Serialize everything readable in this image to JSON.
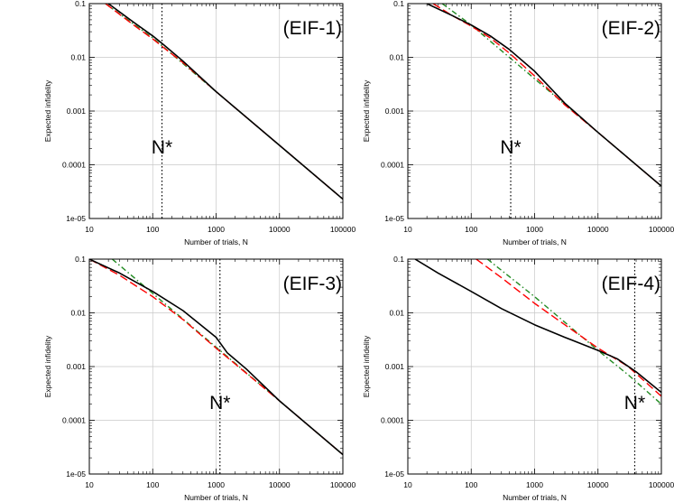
{
  "chart_data": [
    {
      "type": "line",
      "panel_label": "(EIF-1)",
      "marker_label": "N*",
      "marker_x": 140,
      "xlabel": "Number of trials, N",
      "ylabel": "Expected infidelity",
      "xscale": "log",
      "yscale": "log",
      "xlim": [
        10,
        100000
      ],
      "ylim": [
        1e-05,
        0.1
      ],
      "xticks": [
        "10",
        "100",
        "1000",
        "10000",
        "100000"
      ],
      "yticks": [
        "1e-05",
        "0.0001",
        "0.001",
        "0.01",
        "0.1"
      ],
      "grid": true,
      "series": [
        {
          "color": "#000000",
          "dash": "solid",
          "x": [
            20,
            50,
            100,
            150,
            300,
            1000,
            10000,
            100000
          ],
          "y": [
            0.1,
            0.045,
            0.025,
            0.017,
            0.0085,
            0.0023,
            0.00023,
            2.3e-05
          ]
        },
        {
          "color": "#ff0000",
          "dash": "dashed",
          "x": [
            18,
            50,
            100,
            150,
            300,
            1000,
            10000,
            100000
          ],
          "y": [
            0.1,
            0.04,
            0.022,
            0.015,
            0.008,
            0.0023,
            0.00023,
            2.3e-05
          ]
        },
        {
          "color": "#228b22",
          "dash": "dashdot",
          "x": [
            18,
            100,
            1000,
            10000,
            100000
          ],
          "y": [
            0.1,
            0.023,
            0.0023,
            0.00023,
            2.3e-05
          ]
        }
      ]
    },
    {
      "type": "line",
      "panel_label": "(EIF-2)",
      "marker_label": "N*",
      "marker_x": 420,
      "xlabel": "Number of trials, N",
      "ylabel": "Expected infidelity",
      "xscale": "log",
      "yscale": "log",
      "xlim": [
        10,
        100000
      ],
      "ylim": [
        1e-05,
        0.1
      ],
      "xticks": [
        "10",
        "100",
        "1000",
        "10000",
        "100000"
      ],
      "yticks": [
        "1e-05",
        "0.0001",
        "0.001",
        "0.01",
        "0.1"
      ],
      "grid": true,
      "series": [
        {
          "color": "#000000",
          "dash": "solid",
          "x": [
            20,
            50,
            100,
            200,
            400,
            1000,
            3000,
            10000,
            100000
          ],
          "y": [
            0.1,
            0.06,
            0.04,
            0.025,
            0.014,
            0.0055,
            0.0014,
            0.0004,
            4e-05
          ]
        },
        {
          "color": "#ff0000",
          "dash": "dashed",
          "x": [
            25,
            50,
            100,
            200,
            400,
            1000,
            3000,
            10000,
            100000
          ],
          "y": [
            0.1,
            0.06,
            0.038,
            0.023,
            0.012,
            0.0045,
            0.0013,
            0.0004,
            4e-05
          ]
        },
        {
          "color": "#228b22",
          "dash": "dashdot",
          "x": [
            35,
            100,
            400,
            1000,
            10000,
            100000
          ],
          "y": [
            0.1,
            0.04,
            0.01,
            0.004,
            0.0004,
            4e-05
          ]
        }
      ]
    },
    {
      "type": "line",
      "panel_label": "(EIF-3)",
      "marker_label": "N*",
      "marker_x": 1150,
      "xlabel": "Number of trials, N",
      "ylabel": "Expected infidelity",
      "xscale": "log",
      "yscale": "log",
      "xlim": [
        10,
        100000
      ],
      "ylim": [
        1e-05,
        0.1
      ],
      "xticks": [
        "10",
        "100",
        "1000",
        "10000",
        "100000"
      ],
      "yticks": [
        "1e-05",
        "0.0001",
        "0.001",
        "0.01",
        "0.1"
      ],
      "grid": true,
      "series": [
        {
          "color": "#000000",
          "dash": "solid",
          "x": [
            10,
            30,
            100,
            300,
            1000,
            1500,
            3000,
            10000,
            100000
          ],
          "y": [
            0.1,
            0.055,
            0.025,
            0.011,
            0.0035,
            0.0018,
            0.0009,
            0.00023,
            2.3e-05
          ]
        },
        {
          "color": "#ff0000",
          "dash": "dashed",
          "x": [
            10,
            30,
            100,
            300,
            1000,
            3000,
            10000,
            100000
          ],
          "y": [
            0.1,
            0.05,
            0.02,
            0.0075,
            0.0022,
            0.00075,
            0.00023,
            2.3e-05
          ]
        },
        {
          "color": "#228b22",
          "dash": "dashdot",
          "x": [
            23,
            100,
            1000,
            10000,
            100000
          ],
          "y": [
            0.1,
            0.023,
            0.0023,
            0.00023,
            2.3e-05
          ]
        }
      ]
    },
    {
      "type": "line",
      "panel_label": "(EIF-4)",
      "marker_label": "N*",
      "marker_x": 38000,
      "xlabel": "Number of trials, N",
      "ylabel": "Expected infidelity",
      "xscale": "log",
      "yscale": "log",
      "xlim": [
        10,
        100000
      ],
      "ylim": [
        1e-05,
        0.1
      ],
      "xticks": [
        "10",
        "100",
        "1000",
        "10000",
        "100000"
      ],
      "yticks": [
        "1e-05",
        "0.0001",
        "0.001",
        "0.01",
        "0.1"
      ],
      "grid": true,
      "series": [
        {
          "color": "#000000",
          "dash": "solid",
          "x": [
            13,
            30,
            100,
            300,
            1000,
            3000,
            10000,
            20000,
            40000,
            100000
          ],
          "y": [
            0.1,
            0.055,
            0.025,
            0.012,
            0.006,
            0.0035,
            0.002,
            0.0014,
            0.0008,
            0.00033
          ]
        },
        {
          "color": "#ff0000",
          "dash": "dashed",
          "x": [
            120,
            300,
            1000,
            3000,
            10000,
            30000,
            100000
          ],
          "y": [
            0.1,
            0.045,
            0.015,
            0.006,
            0.0022,
            0.001,
            0.00028
          ]
        },
        {
          "color": "#228b22",
          "dash": "dashdot",
          "x": [
            180,
            1000,
            10000,
            30000,
            100000
          ],
          "y": [
            0.1,
            0.02,
            0.002,
            0.0007,
            0.0002
          ]
        }
      ]
    }
  ]
}
